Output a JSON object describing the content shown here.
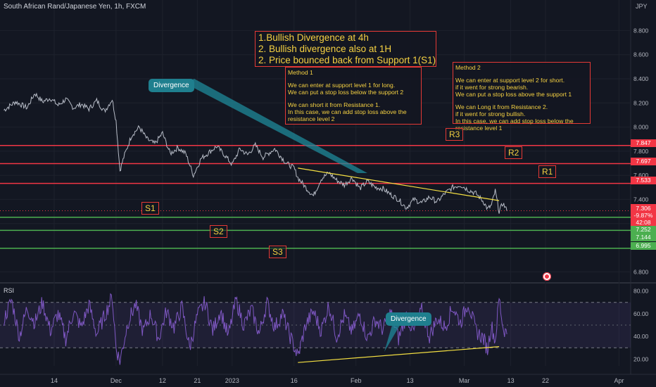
{
  "header": {
    "title": "South African Rand/Japanese Yen, 1h, FXCM",
    "currency": "JPY"
  },
  "notes": {
    "title_lines": [
      "1.Bullish Divergence at 4h",
      "2. Bullish divergence also at 1H",
      "2. Price bounced back from Support 1(S1)"
    ],
    "method1_lines": [
      "Method 1",
      "",
      "We can enter at support level 1 for long.",
      "We can put a stop loss below the support 2",
      "",
      "We can short it from Resistance 1.",
      "In this case, we can add stop loss above the",
      "resistance level 2"
    ],
    "method2_lines": [
      "Method 2",
      "",
      "We can enter at support level 2 for short.",
      "if it went for strong bearish.",
      "We can put a stop loss above the support 1",
      "",
      "We can Long it from Resistance 2.",
      "if it went for strong bullish.",
      "In this case, we can add stop loss below the",
      "resistance level 1"
    ],
    "divergence_label": "Divergence",
    "rsi_divergence_label": "Divergence"
  },
  "levels": {
    "R3": {
      "label": "R3",
      "price": 7.847,
      "price_text": "7.847",
      "color": "#f23645"
    },
    "R2": {
      "label": "R2",
      "price": 7.697,
      "price_text": "7.697",
      "color": "#f23645"
    },
    "R1": {
      "label": "R1",
      "price": 7.533,
      "price_text": "7.533",
      "color": "#f23645"
    },
    "S1": {
      "label": "S1",
      "price": 7.252,
      "price_text": "7.252",
      "color": "#4caf50"
    },
    "S2": {
      "label": "S2",
      "price": 7.144,
      "price_text": "7.144",
      "color": "#4caf50"
    },
    "S3": {
      "label": "S3",
      "price": 6.995,
      "price_text": "6.995",
      "color": "#4caf50"
    }
  },
  "last_price": {
    "price": 7.306,
    "price_text": "7.306",
    "change": "-9.87%",
    "countdown": "42:08",
    "color": "#f23645"
  },
  "rsi_panel": {
    "label": "RSI"
  },
  "chart_data": [
    {
      "type": "line",
      "title": "South African Rand/Japanese Yen, 1h, FXCM",
      "ylabel": "JPY",
      "ylim": [
        6.72,
        8.96
      ],
      "y_ticks": [
        "8.800",
        "8.600",
        "8.400",
        "8.200",
        "8.000",
        "7.800",
        "7.600",
        "7.400",
        "7.200",
        "6.800"
      ],
      "y_tick_values": [
        8.8,
        8.6,
        8.4,
        8.2,
        8.0,
        7.8,
        7.6,
        7.4,
        7.2,
        6.8
      ],
      "x_ticks": [
        "14",
        "Dec",
        "12",
        "21",
        "2023",
        "16",
        "Feb",
        "13",
        "Mar",
        "13",
        "22",
        "Apr"
      ],
      "x_tick_days": [
        0,
        16,
        28,
        37,
        46,
        62,
        78,
        92,
        106,
        118,
        127,
        146
      ],
      "xlim_days": [
        -14,
        149
      ],
      "series": [
        {
          "values_by_day": [
            [
              -13,
              8.14
            ],
            [
              -10,
              8.21
            ],
            [
              -7,
              8.16
            ],
            [
              -5,
              8.28
            ],
            [
              -3,
              8.21
            ],
            [
              -1,
              8.24
            ],
            [
              1,
              8.18
            ],
            [
              3,
              8.23
            ],
            [
              5,
              8.16
            ],
            [
              7,
              8.19
            ],
            [
              9,
              8.15
            ],
            [
              11,
              8.22
            ],
            [
              13,
              8.13
            ],
            [
              15,
              8.23
            ],
            [
              16,
              8.05
            ],
            [
              17,
              7.64
            ],
            [
              18,
              7.75
            ],
            [
              20,
              7.93
            ],
            [
              22,
              8.0
            ],
            [
              24,
              7.9
            ],
            [
              26,
              7.86
            ],
            [
              28,
              7.95
            ],
            [
              30,
              7.78
            ],
            [
              32,
              7.83
            ],
            [
              34,
              7.78
            ],
            [
              36,
              7.6
            ],
            [
              38,
              7.74
            ],
            [
              40,
              7.79
            ],
            [
              42,
              7.84
            ],
            [
              44,
              7.77
            ],
            [
              46,
              7.69
            ],
            [
              48,
              7.82
            ],
            [
              50,
              7.77
            ],
            [
              52,
              7.85
            ],
            [
              54,
              7.75
            ],
            [
              57,
              7.82
            ],
            [
              60,
              7.7
            ],
            [
              62,
              7.66
            ],
            [
              63,
              7.58
            ],
            [
              65,
              7.5
            ],
            [
              67,
              7.43
            ],
            [
              69,
              7.57
            ],
            [
              71,
              7.62
            ],
            [
              73,
              7.56
            ],
            [
              75,
              7.52
            ],
            [
              77,
              7.58
            ],
            [
              79,
              7.49
            ],
            [
              81,
              7.55
            ],
            [
              83,
              7.5
            ],
            [
              85,
              7.49
            ],
            [
              87,
              7.44
            ],
            [
              89,
              7.4
            ],
            [
              91,
              7.33
            ],
            [
              93,
              7.4
            ],
            [
              95,
              7.37
            ],
            [
              97,
              7.42
            ],
            [
              99,
              7.38
            ],
            [
              101,
              7.45
            ],
            [
              103,
              7.5
            ],
            [
              105,
              7.52
            ],
            [
              107,
              7.48
            ],
            [
              109,
              7.45
            ],
            [
              111,
              7.38
            ],
            [
              112,
              7.32
            ],
            [
              113,
              7.35
            ],
            [
              114,
              7.47
            ],
            [
              115,
              7.3
            ],
            [
              116,
              7.37
            ],
            [
              117,
              7.306
            ]
          ]
        }
      ],
      "annotations": {
        "price_trendline": [
          [
            63,
            7.66
          ],
          [
            115,
            7.39
          ]
        ]
      }
    },
    {
      "type": "line",
      "title": "RSI",
      "ylim": [
        14,
        86
      ],
      "y_ticks": [
        "80.00",
        "60.00",
        "40.00",
        "20.00"
      ],
      "y_tick_values": [
        80,
        60,
        40,
        20
      ],
      "bands": [
        30,
        70
      ],
      "series": [
        {
          "values_by_day": [
            [
              -13,
              55
            ],
            [
              -11,
              72
            ],
            [
              -9,
              40
            ],
            [
              -7,
              65
            ],
            [
              -5,
              52
            ],
            [
              -3,
              70
            ],
            [
              -1,
              45
            ],
            [
              1,
              60
            ],
            [
              3,
              38
            ],
            [
              5,
              62
            ],
            [
              7,
              48
            ],
            [
              9,
              68
            ],
            [
              11,
              42
            ],
            [
              13,
              58
            ],
            [
              15,
              75
            ],
            [
              16,
              30
            ],
            [
              17,
              18
            ],
            [
              19,
              52
            ],
            [
              21,
              68
            ],
            [
              23,
              44
            ],
            [
              25,
              60
            ],
            [
              27,
              38
            ],
            [
              29,
              62
            ],
            [
              31,
              48
            ],
            [
              33,
              66
            ],
            [
              35,
              30
            ],
            [
              37,
              58
            ],
            [
              39,
              70
            ],
            [
              41,
              45
            ],
            [
              43,
              63
            ],
            [
              45,
              40
            ],
            [
              47,
              72
            ],
            [
              49,
              50
            ],
            [
              51,
              64
            ],
            [
              53,
              42
            ],
            [
              55,
              70
            ],
            [
              57,
              48
            ],
            [
              59,
              60
            ],
            [
              61,
              40
            ],
            [
              63,
              22
            ],
            [
              65,
              50
            ],
            [
              67,
              62
            ],
            [
              69,
              45
            ],
            [
              71,
              68
            ],
            [
              73,
              40
            ],
            [
              75,
              58
            ],
            [
              77,
              44
            ],
            [
              79,
              60
            ],
            [
              81,
              38
            ],
            [
              83,
              55
            ],
            [
              85,
              46
            ],
            [
              87,
              62
            ],
            [
              89,
              38
            ],
            [
              91,
              58
            ],
            [
              93,
              44
            ],
            [
              95,
              63
            ],
            [
              97,
              40
            ],
            [
              99,
              56
            ],
            [
              101,
              48
            ],
            [
              103,
              66
            ],
            [
              105,
              52
            ],
            [
              107,
              70
            ],
            [
              109,
              45
            ],
            [
              111,
              38
            ],
            [
              112,
              28
            ],
            [
              113,
              50
            ],
            [
              114,
              36
            ],
            [
              115,
              74
            ],
            [
              116,
              48
            ],
            [
              117,
              42
            ]
          ]
        }
      ],
      "annotations": {
        "rsi_trendline": [
          [
            63,
            17
          ],
          [
            115,
            31
          ]
        ]
      }
    }
  ]
}
